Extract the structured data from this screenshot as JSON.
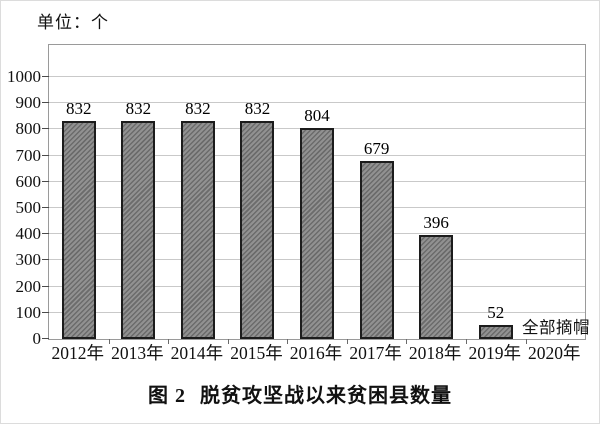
{
  "figure": {
    "unit_label": "单位：个",
    "caption_prefix": "图 2",
    "caption_text": "脱贫攻坚战以来贫困县数量"
  },
  "chart_data": {
    "type": "bar",
    "title": "图 2 脱贫攻坚战以来贫困县数量",
    "unit": "单位：个",
    "xlabel": "",
    "ylabel": "",
    "categories": [
      "2012年",
      "2013年",
      "2014年",
      "2015年",
      "2016年",
      "2017年",
      "2018年",
      "2019年",
      "2020年"
    ],
    "values": [
      832,
      832,
      832,
      832,
      804,
      679,
      396,
      52,
      null
    ],
    "bar_labels": [
      "832",
      "832",
      "832",
      "832",
      "804",
      "679",
      "396",
      "52",
      ""
    ],
    "annotation": {
      "text": "全部摘帽",
      "attached_to": "2019年"
    },
    "ylim": [
      0,
      1100
    ],
    "yticks": [
      0,
      100,
      200,
      300,
      400,
      500,
      600,
      700,
      800,
      900,
      1000
    ],
    "grid": true,
    "legend_position": "none",
    "bar_color": "#8a8a8a",
    "bar_hatch": "diagonal-forward",
    "bar_border_color": "#1c1c1c",
    "gridline_color": "#c9c9c9",
    "frame_color": "#9a9a9a"
  }
}
